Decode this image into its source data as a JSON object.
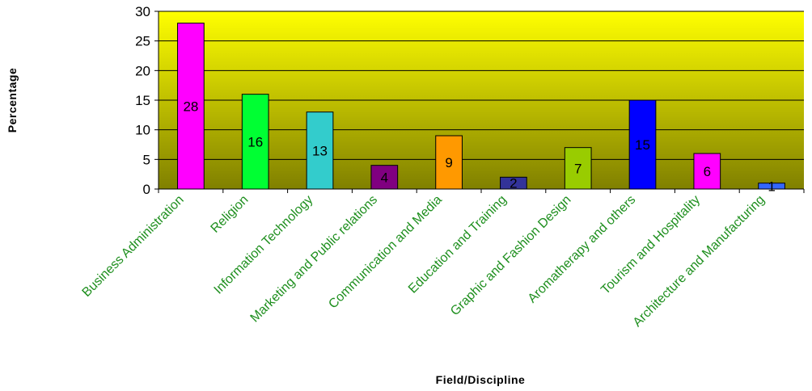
{
  "chart_data": {
    "type": "bar",
    "title": "",
    "xlabel": "Field/Discipline",
    "ylabel": "Percentage",
    "ylim": [
      0,
      30
    ],
    "yticks": [
      0,
      5,
      10,
      15,
      20,
      25,
      30
    ],
    "grid": true,
    "legend": "none",
    "categories": [
      "Business Administration",
      "Religion",
      "Information Technology",
      "Marketing and Public relations",
      "Communication and Media",
      "Education and Training",
      "Graphic and Fashion Design",
      "Aromatherapy and others",
      "Tourism and Hospitality",
      "Architecture and Manufacturing"
    ],
    "values": [
      28,
      16,
      13,
      4,
      9,
      2,
      7,
      15,
      6,
      1
    ],
    "data_labels": [
      "28",
      "16",
      "13",
      "4",
      "9",
      "2",
      "7",
      "15",
      "6",
      "1"
    ],
    "bar_colors": [
      "#ff00ff",
      "#00ff33",
      "#33cccc",
      "#800080",
      "#ff9900",
      "#333399",
      "#99cc00",
      "#0000ff",
      "#ff00ff",
      "#3366ff"
    ],
    "plot_background": [
      "#ffff00",
      "#808000"
    ],
    "category_label_color": "#1e8f1e"
  }
}
